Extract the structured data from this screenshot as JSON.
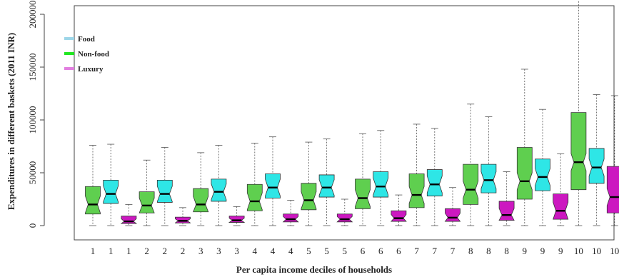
{
  "chart_data": {
    "type": "boxplot",
    "title": "",
    "xlabel": "Per capita income deciles of households",
    "ylabel": "Expenditures in different baskets (2011 INR)",
    "ylim": [
      0,
      220000
    ],
    "yticks": [
      0,
      50000,
      100000,
      150000,
      200000
    ],
    "ytick_labels": [
      "0",
      "50000",
      "100000",
      "150000",
      "200000"
    ],
    "legend_position": "top-left",
    "colors": {
      "Food": "#9dd6e8",
      "Non-food": "#22e622",
      "Luxury": "#e27fe0"
    },
    "box_colors": {
      "Food": "#2ee6e6",
      "Non-food": "#5fcf4f",
      "Luxury": "#cc18c0"
    },
    "series": [
      {
        "name": "Food"
      },
      {
        "name": "Non-food"
      },
      {
        "name": "Luxury"
      }
    ],
    "boxes": [
      {
        "label": "1",
        "series": "Non-food",
        "min": 0,
        "q1": 11000,
        "median": 20000,
        "q3": 37000,
        "max": 76000
      },
      {
        "label": "1",
        "series": "Food",
        "min": 0,
        "q1": 21000,
        "median": 30000,
        "q3": 43000,
        "max": 77000
      },
      {
        "label": "1",
        "series": "Luxury",
        "min": 0,
        "q1": 2000,
        "median": 4000,
        "q3": 9000,
        "max": 20000
      },
      {
        "label": "2",
        "series": "Non-food",
        "min": 0,
        "q1": 12000,
        "median": 19000,
        "q3": 32000,
        "max": 62000
      },
      {
        "label": "2",
        "series": "Food",
        "min": 0,
        "q1": 22000,
        "median": 30000,
        "q3": 43000,
        "max": 74000
      },
      {
        "label": "2",
        "series": "Luxury",
        "min": 0,
        "q1": 2500,
        "median": 4500,
        "q3": 8000,
        "max": 17000
      },
      {
        "label": "3",
        "series": "Non-food",
        "min": 0,
        "q1": 13000,
        "median": 20000,
        "q3": 35000,
        "max": 69000
      },
      {
        "label": "3",
        "series": "Food",
        "min": 0,
        "q1": 23000,
        "median": 32000,
        "q3": 44000,
        "max": 76000
      },
      {
        "label": "3",
        "series": "Luxury",
        "min": 0,
        "q1": 3000,
        "median": 5000,
        "q3": 9000,
        "max": 18000
      },
      {
        "label": "4",
        "series": "Non-food",
        "min": 0,
        "q1": 14000,
        "median": 23000,
        "q3": 39000,
        "max": 78000
      },
      {
        "label": "4",
        "series": "Food",
        "min": 0,
        "q1": 26000,
        "median": 36000,
        "q3": 49000,
        "max": 84000
      },
      {
        "label": "4",
        "series": "Luxury",
        "min": 0,
        "q1": 3500,
        "median": 6000,
        "q3": 11000,
        "max": 24000
      },
      {
        "label": "5",
        "series": "Non-food",
        "min": 0,
        "q1": 15000,
        "median": 24000,
        "q3": 40000,
        "max": 79000
      },
      {
        "label": "5",
        "series": "Food",
        "min": 0,
        "q1": 27000,
        "median": 36000,
        "q3": 48000,
        "max": 82000
      },
      {
        "label": "5",
        "series": "Luxury",
        "min": 0,
        "q1": 3500,
        "median": 6000,
        "q3": 11000,
        "max": 25000
      },
      {
        "label": "6",
        "series": "Non-food",
        "min": 0,
        "q1": 16000,
        "median": 26000,
        "q3": 44000,
        "max": 87000
      },
      {
        "label": "6",
        "series": "Food",
        "min": 0,
        "q1": 27000,
        "median": 37000,
        "q3": 51000,
        "max": 90000
      },
      {
        "label": "6",
        "series": "Luxury",
        "min": 0,
        "q1": 4000,
        "median": 7000,
        "q3": 14000,
        "max": 29000
      },
      {
        "label": "7",
        "series": "Non-food",
        "min": 0,
        "q1": 17000,
        "median": 29000,
        "q3": 49000,
        "max": 96000
      },
      {
        "label": "7",
        "series": "Food",
        "min": 0,
        "q1": 28000,
        "median": 39000,
        "q3": 53000,
        "max": 92000
      },
      {
        "label": "7",
        "series": "Luxury",
        "min": 0,
        "q1": 4000,
        "median": 7500,
        "q3": 16000,
        "max": 36000
      },
      {
        "label": "8",
        "series": "Non-food",
        "min": 0,
        "q1": 20000,
        "median": 34000,
        "q3": 58000,
        "max": 115000
      },
      {
        "label": "8",
        "series": "Food",
        "min": 0,
        "q1": 31000,
        "median": 43000,
        "q3": 58000,
        "max": 103000
      },
      {
        "label": "8",
        "series": "Luxury",
        "min": 0,
        "q1": 5000,
        "median": 10000,
        "q3": 23000,
        "max": 51000
      },
      {
        "label": "9",
        "series": "Non-food",
        "min": 0,
        "q1": 25000,
        "median": 42000,
        "q3": 74000,
        "max": 148000
      },
      {
        "label": "9",
        "series": "Food",
        "min": 0,
        "q1": 33000,
        "median": 46000,
        "q3": 63000,
        "max": 110000
      },
      {
        "label": "9",
        "series": "Luxury",
        "min": 0,
        "q1": 6000,
        "median": 14000,
        "q3": 30000,
        "max": 68000
      },
      {
        "label": "10",
        "series": "Non-food",
        "min": 0,
        "q1": 34000,
        "median": 60000,
        "q3": 107000,
        "max": 215000
      },
      {
        "label": "10",
        "series": "Food",
        "min": 0,
        "q1": 40000,
        "median": 55000,
        "q3": 73000,
        "max": 124000
      },
      {
        "label": "10",
        "series": "Luxury",
        "min": 0,
        "q1": 12000,
        "median": 27000,
        "q3": 56000,
        "max": 123000
      }
    ]
  }
}
